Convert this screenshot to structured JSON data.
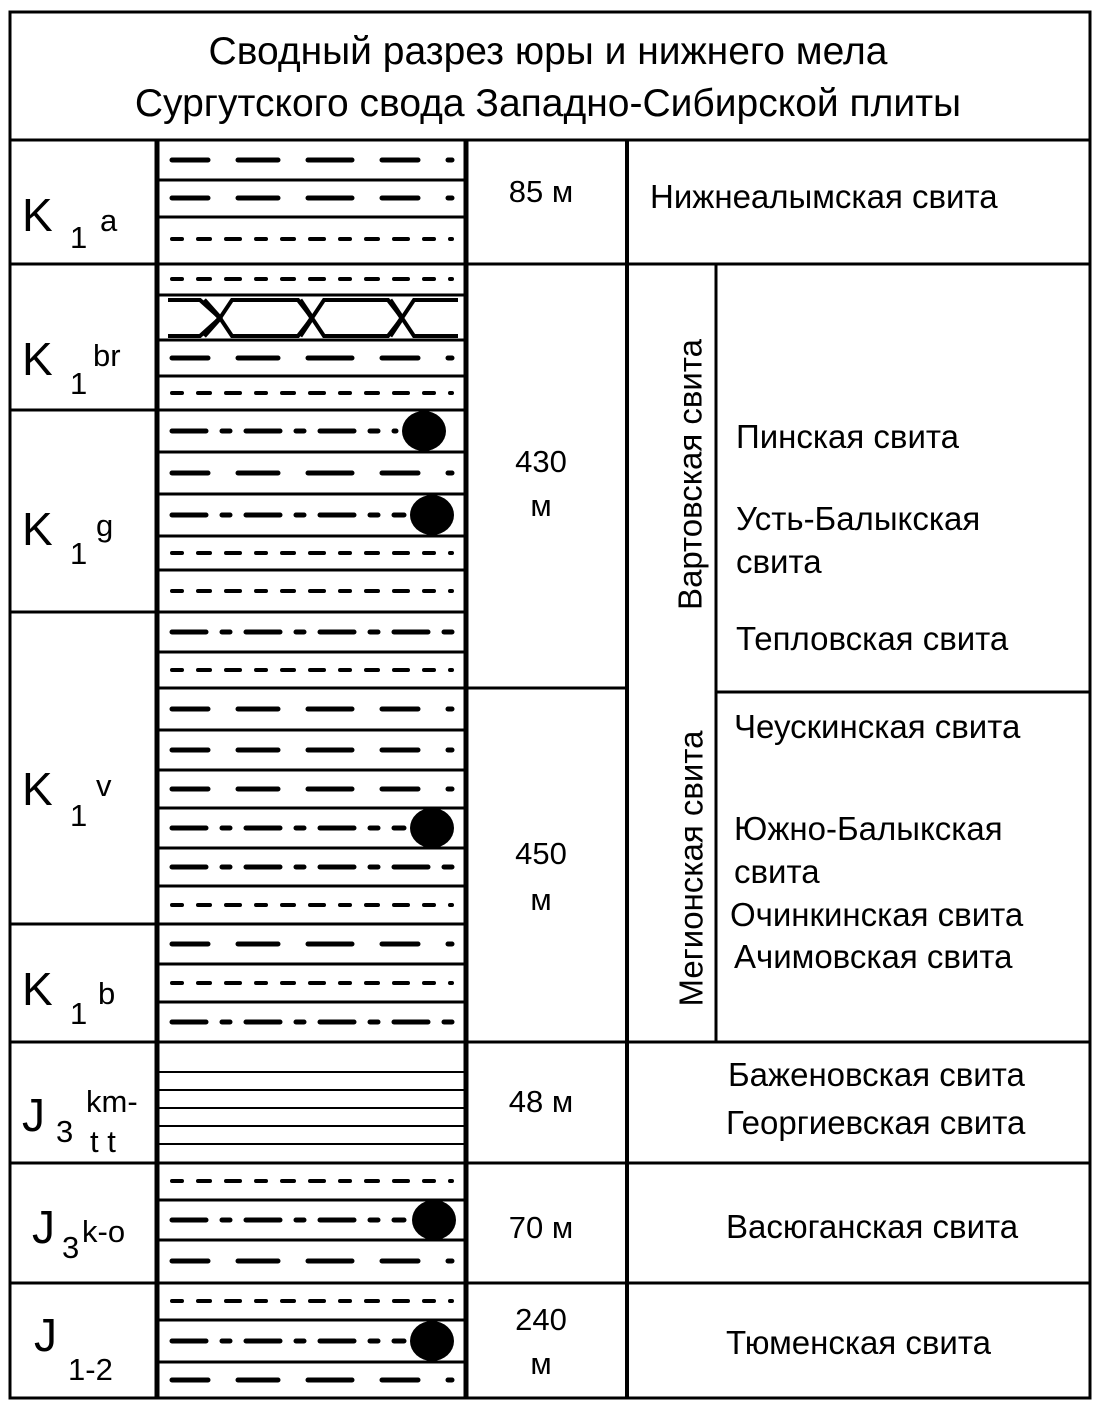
{
  "title": {
    "line1": "Сводный разрез юры и нижнего мела",
    "line2": "Сургутского свода Западно-Сибирской плиты"
  },
  "stages": [
    {
      "main": "K",
      "sub": "1",
      "sup": "a"
    },
    {
      "main": "K",
      "sub": "1",
      "sup": "br"
    },
    {
      "main": "K",
      "sub": "1",
      "sup": "g"
    },
    {
      "main": "K",
      "sub": "1",
      "sup": "v"
    },
    {
      "main": "K",
      "sub": "1",
      "sup": "b"
    },
    {
      "main": "J",
      "sub": "3",
      "sup": "km-",
      "sup2": "t t"
    },
    {
      "main": "J",
      "sub": "3",
      "sup": "k-o"
    },
    {
      "main": "J",
      "sub": "1-2"
    }
  ],
  "thickness": [
    {
      "line1": "85 м"
    },
    {
      "line1": "430",
      "line2": "м"
    },
    {
      "line1": "450",
      "line2": "м"
    },
    {
      "line1": "48 м"
    },
    {
      "line1": "70 м"
    },
    {
      "line1": "240",
      "line2": "м"
    }
  ],
  "group_formations": {
    "vartovskaya": "Вартовская свита",
    "megionskaya": "Мегионская свита"
  },
  "formations": {
    "nizhnealymskaya": "Нижнеалымская свита",
    "pinskaya": "Пинская свита",
    "ust_balykskaya_1": "Усть-Балыкская",
    "ust_balykskaya_2": "свита",
    "teplovskaya": "Тепловская свита",
    "cheuskinskaya": "Чеускинская свита",
    "yuzhno_balykskaya_1": "Южно-Балыкская",
    "yuzhno_balykskaya_2": "свита",
    "ochinkinskaya": "Очинкинская свита",
    "achimovskaya": "Ачимовская свита",
    "bazhenovskaya": "Баженовская свита",
    "georgievskaya": "Георгиевская свита",
    "vasyuganskaya": "Васюганская свита",
    "tyumenskaya": "Тюменская свита"
  }
}
